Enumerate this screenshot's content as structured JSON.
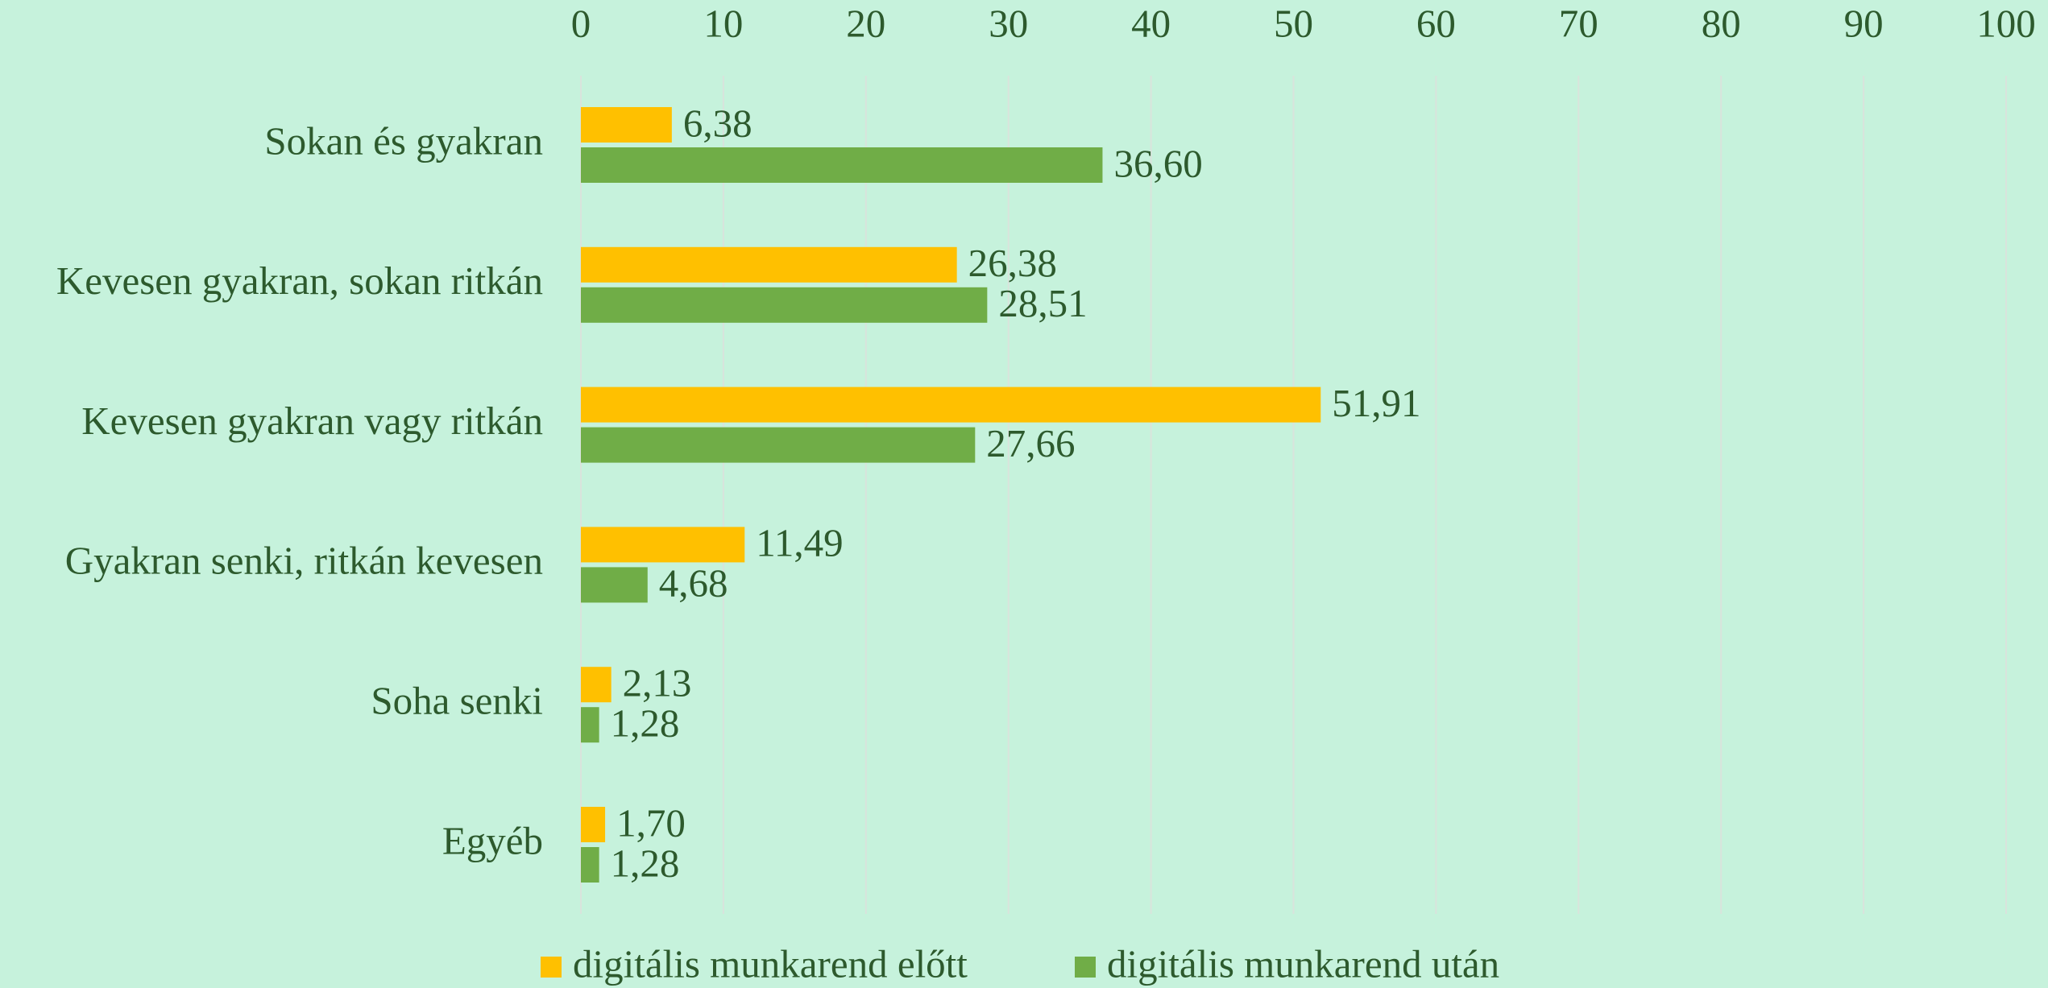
{
  "chart_data": {
    "type": "hbar",
    "categories": [
      "Sokan és gyakran",
      "Kevesen gyakran, sokan ritkán",
      "Kevesen gyakran vagy ritkán",
      "Gyakran senki, ritkán kevesen",
      "Soha senki",
      "Egyéb"
    ],
    "series": [
      {
        "name": "digitális munkarend előtt",
        "color": "#ffc000",
        "values": [
          6.38,
          26.38,
          51.91,
          11.49,
          2.13,
          1.7
        ],
        "value_labels": [
          "6,38",
          "26,38",
          "51,91",
          "11,49",
          "2,13",
          "1,70"
        ]
      },
      {
        "name": "digitális munkarend után",
        "color": "#70ad47",
        "values": [
          36.6,
          28.51,
          27.66,
          4.68,
          1.28,
          1.28
        ],
        "value_labels": [
          "36,60",
          "28,51",
          "27,66",
          "4,68",
          "1,28",
          "1,28"
        ]
      }
    ],
    "xlim": [
      0,
      100
    ],
    "xticks": [
      0,
      10,
      20,
      30,
      40,
      50,
      60,
      70,
      80,
      90,
      100
    ],
    "grid": true,
    "legend": "bottom"
  }
}
